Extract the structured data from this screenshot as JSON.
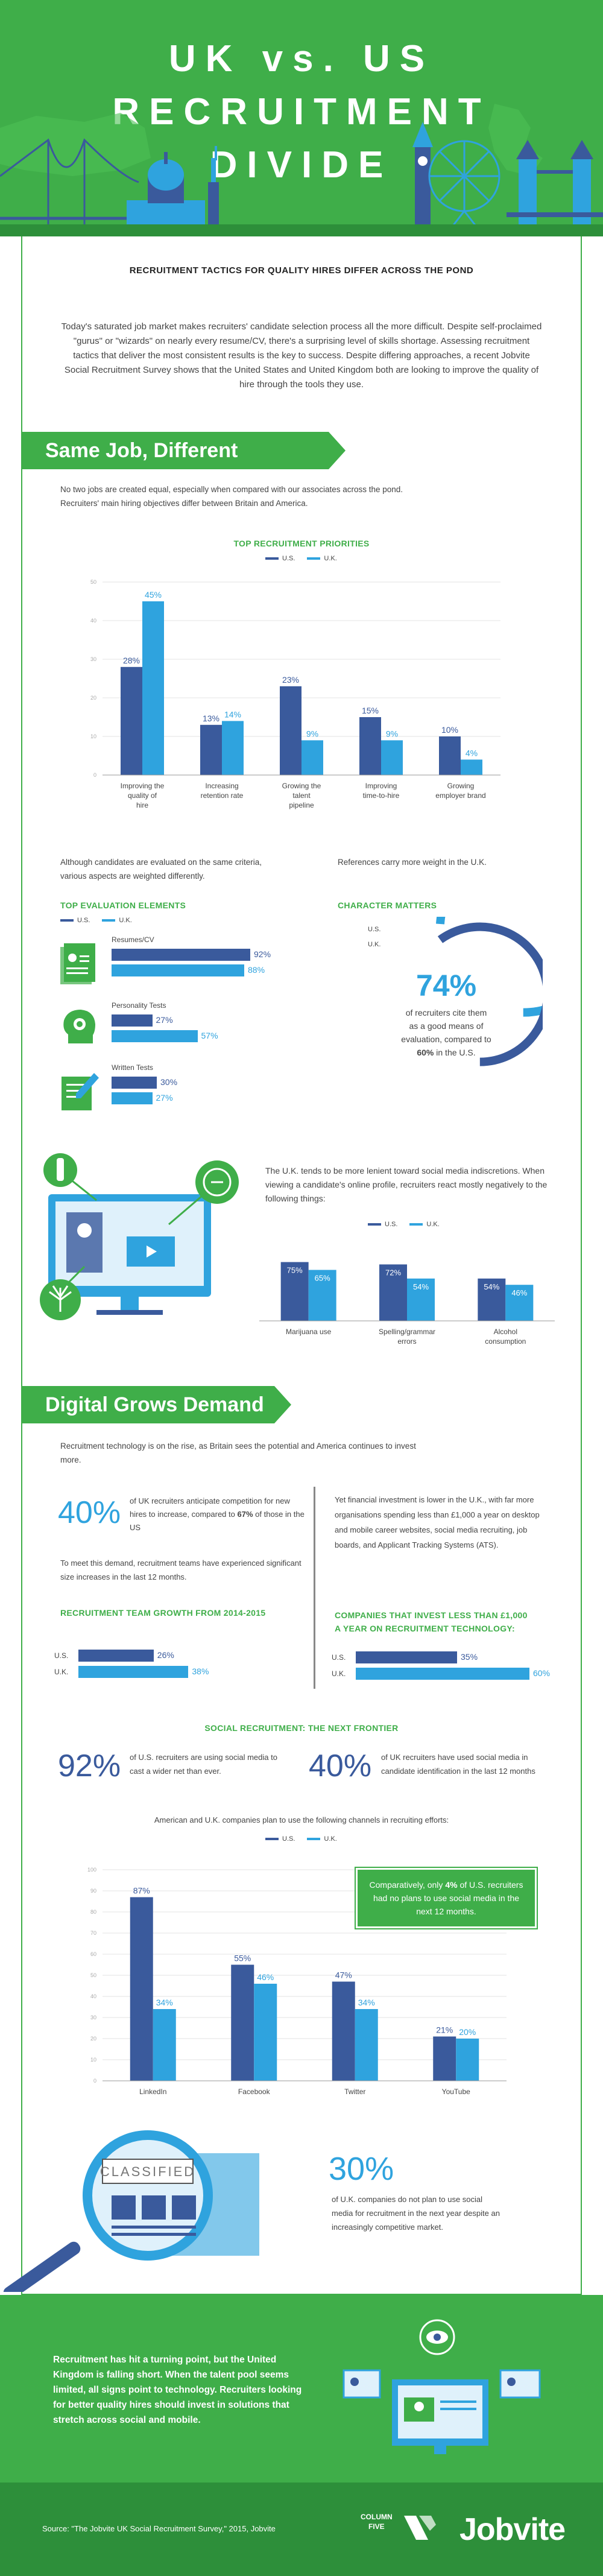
{
  "header": {
    "line1": "UK vs. US",
    "line2": "RECRUITMENT",
    "line3": "DIVIDE"
  },
  "subtitle": "RECRUITMENT TACTICS FOR QUALITY HIRES DIFFER ACROSS THE POND",
  "intro": "Today's saturated job market makes recruiters' candidate selection process all the more difficult. Despite self-proclaimed \"gurus\" or \"wizards\" on nearly every resume/CV, there's a surprising level of skills shortage. Assessing recruitment tactics that deliver the most consistent results is the key to success. Despite differing approaches, a recent Jobvite Social Recruitment Survey shows that the United States and United Kingdom both are looking to improve the quality of hire through the tools they use.",
  "section1": {
    "banner": "Same Job, Different Approach",
    "text": "No two jobs are created equal, especially when compared with our associates across the pond. Recruiters' main hiring objectives differ between Britain and America.",
    "priorities_title": "TOP RECRUITMENT PRIORITIES",
    "legend_us": "U.S.",
    "legend_uk": "U.K.",
    "eval_intro": "Although candidates are evaluated on the same criteria, various aspects are weighted differently.",
    "eval_title": "TOP EVALUATION ELEMENTS",
    "eval_items": [
      {
        "label": "Resumes/CV",
        "us": 92,
        "uk": 88,
        "us_text": "92%",
        "uk_text": "88%"
      },
      {
        "label": "Personality Tests",
        "us": 27,
        "uk": 57,
        "us_text": "27%",
        "uk_text": "57%"
      },
      {
        "label": "Written Tests",
        "us": 30,
        "uk": 27,
        "us_text": "30%",
        "uk_text": "27%"
      }
    ],
    "ref_intro": "References carry more weight in the U.K.",
    "character_title": "CHARACTER MATTERS",
    "character_us_label": "U.S.",
    "character_uk_label": "U.K.",
    "character_pct": "74%",
    "character_us_value": 60,
    "character_uk_value": 74,
    "character_text1": "of recruiters cite them as a good means of evaluation, compared to",
    "character_text2": "60%",
    "character_text3": "in the U.S.",
    "social_text": "The U.K. tends to be more lenient toward social media indiscretions. When viewing a candidate's online profile, recruiters react mostly negatively to the following things:"
  },
  "section2": {
    "banner": "Digital Grows Demand",
    "text": "Recruitment technology is on the rise, as Britain sees the potential and America continues to invest more.",
    "stat40a_pct": "40%",
    "stat40a_text1": "of UK recruiters anticipate competition for new hires to increase, compared to",
    "stat40a_text2": "67%",
    "stat40a_text3": "of those in the US",
    "team_text": "To meet this demand, recruitment teams have experienced significant size increases in the last 12 months.",
    "team_title": "RECRUITMENT TEAM GROWTH FROM 2014-2015",
    "team_us_label": "U.S.",
    "team_uk_label": "U.K.",
    "team_us": 26,
    "team_uk": 38,
    "team_us_text": "26%",
    "team_uk_text": "38%",
    "invest_text": "Yet financial investment is lower in the U.K., with far more organisations spending less than £1,000 a year on desktop and mobile career websites, social media recruiting, job boards, and Applicant Tracking Systems (ATS).",
    "invest_title_1": "COMPANIES THAT INVEST LESS THAN £1,000",
    "invest_title_2": "A YEAR ON RECRUITMENT TECHNOLOGY:",
    "invest_us_label": "U.S.",
    "invest_uk_label": "U.K.",
    "invest_us": 35,
    "invest_uk": 60,
    "invest_us_text": "35%",
    "invest_uk_text": "60%",
    "frontier_title": "SOCIAL RECRUITMENT: THE NEXT FRONTIER",
    "stat92_pct": "92%",
    "stat92_text": "of U.S. recruiters are using social media to cast a wider net than ever.",
    "stat40b_pct": "40%",
    "stat40b_text": "of UK recruiters have used social media in candidate identification in the last 12 months",
    "channels_text": "American and U.K. companies plan to use the following channels in recruiting efforts:",
    "callout_1": "Comparatively, only",
    "callout_2": "4%",
    "callout_3": "of U.S. recruiters had no plans to use social media in the next 12 months.",
    "stat30_pct": "30%",
    "stat30_text": "of U.K. companies do not plan to use social media for recruitment in the next year despite an increasingly competitive market.",
    "classified_label": "CLASSIFIED"
  },
  "footer": {
    "text": "Recruitment has hit a turning point, but the United Kingdom is falling short. When the talent pool seems limited, all signs point to technology. Recruiters looking for better quality hires should invest in solutions that stretch across social and mobile.",
    "source": "Source: \"The Jobvite UK Social Recruitment Survey,\" 2015, Jobvite",
    "brand1_line1": "COLUMN",
    "brand1_line2": "FIVE",
    "brand2": "Jobvite"
  },
  "colors": {
    "green": "#3fae49",
    "us_blue": "#3a5a9c",
    "uk_blue": "#2fa3de"
  },
  "chart_data": [
    {
      "type": "bar",
      "title": "TOP RECRUITMENT PRIORITIES",
      "categories": [
        "Improving the quality of hire",
        "Increasing retention rate",
        "Growing the talent pipeline",
        "Improving time-to-hire",
        "Growing employer brand"
      ],
      "series": [
        {
          "name": "U.S.",
          "values": [
            28,
            13,
            23,
            15,
            10
          ]
        },
        {
          "name": "U.K.",
          "values": [
            45,
            14,
            9,
            9,
            4
          ]
        }
      ],
      "ylim": [
        0,
        50
      ],
      "yticks": [
        0,
        10,
        20,
        30,
        40,
        50
      ],
      "grid": true
    },
    {
      "type": "bar",
      "categories": [
        "Marijuana use",
        "Spelling/grammar errors",
        "Alcohol consumption"
      ],
      "series": [
        {
          "name": "U.S.",
          "values": [
            75,
            72,
            54
          ]
        },
        {
          "name": "U.K.",
          "values": [
            65,
            54,
            46
          ]
        }
      ],
      "ylim": [
        0,
        100
      ]
    },
    {
      "type": "bar",
      "categories": [
        "LinkedIn",
        "Facebook",
        "Twitter",
        "YouTube"
      ],
      "series": [
        {
          "name": "U.S.",
          "values": [
            87,
            55,
            47,
            21
          ]
        },
        {
          "name": "U.K.",
          "values": [
            34,
            46,
            34,
            20
          ]
        }
      ],
      "ylim": [
        0,
        100
      ],
      "yticks": [
        0,
        10,
        20,
        30,
        40,
        50,
        60,
        70,
        80,
        90,
        100
      ],
      "grid": true
    }
  ]
}
